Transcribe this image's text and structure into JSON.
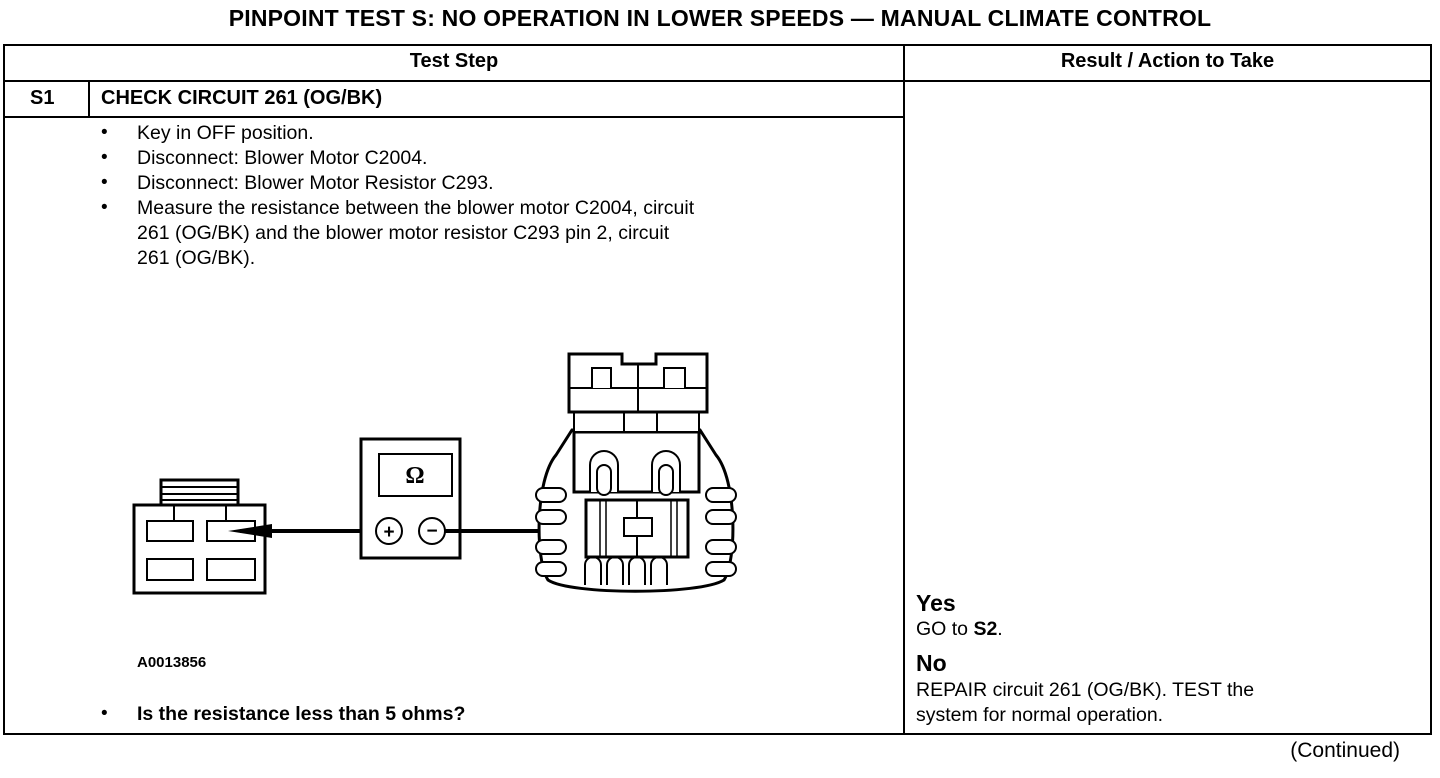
{
  "title": "PINPOINT TEST  S: NO OPERATION IN LOWER SPEEDS — MANUAL CLIMATE CONTROL",
  "table": {
    "headers": [
      "Test Step",
      "Result / Action to Take"
    ],
    "step": {
      "id": "S1",
      "heading": "CHECK CIRCUIT 261 (OG/BK)",
      "bullets": [
        {
          "lines": [
            "Key in OFF position."
          ]
        },
        {
          "lines": [
            "Disconnect: Blower Motor C2004."
          ]
        },
        {
          "lines": [
            "Disconnect: Blower Motor Resistor C293."
          ]
        },
        {
          "lines": [
            "Measure the resistance between the blower motor C2004, circuit",
            "261 (OG/BK) and the blower motor resistor C293 pin 2, circuit",
            "261 (OG/BK)."
          ]
        }
      ],
      "figure": {
        "id": "A0013856",
        "meter_symbol": "Ω",
        "plus": "+",
        "minus": "−"
      },
      "question": "Is the resistance less than 5 ohms?"
    },
    "results": [
      {
        "label": "Yes",
        "action_prefix": "GO to ",
        "action_bold": "S2",
        "action_suffix": "."
      },
      {
        "label": "No",
        "action_lines": [
          "REPAIR circuit 261 (OG/BK). TEST the",
          "system for normal operation."
        ]
      }
    ]
  },
  "footer": "(Continued)"
}
